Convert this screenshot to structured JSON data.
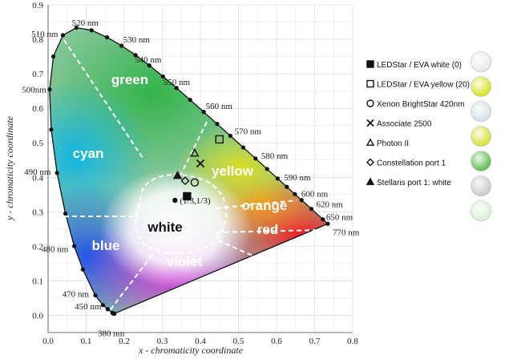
{
  "chart_data": {
    "type": "scatter",
    "xlabel": "x - chromaticity coordinate",
    "ylabel": "y - chromaticity coordinate",
    "xlim": [
      0.0,
      0.8
    ],
    "ylim": [
      -0.05,
      0.9
    ],
    "x_ticks": [
      "0.0",
      "0.1",
      "0.2",
      "0.3",
      "0.4",
      "0.5",
      "0.6",
      "0.7",
      "0.8"
    ],
    "y_ticks": [
      "0.0",
      "0.1",
      "0.2",
      "0.3",
      "0.4",
      "0.5",
      "0.6",
      "0.7",
      "0.8",
      "0.9"
    ],
    "grid": true,
    "spectral_locus": [
      {
        "label": "380 nm",
        "x": 0.1741,
        "y": 0.005
      },
      {
        "label": "",
        "x": 0.1738,
        "y": 0.0049
      },
      {
        "label": "",
        "x": 0.1733,
        "y": 0.0048
      },
      {
        "label": "",
        "x": 0.1726,
        "y": 0.0048
      },
      {
        "label": "",
        "x": 0.1714,
        "y": 0.0051
      },
      {
        "label": "",
        "x": 0.1689,
        "y": 0.0069
      },
      {
        "label": "450 nm",
        "x": 0.1566,
        "y": 0.0177
      },
      {
        "label": "",
        "x": 0.144,
        "y": 0.0297
      },
      {
        "label": "470 nm",
        "x": 0.1241,
        "y": 0.0578
      },
      {
        "label": "",
        "x": 0.0913,
        "y": 0.1327
      },
      {
        "label": "480 nm",
        "x": 0.0687,
        "y": 0.2007
      },
      {
        "label": "",
        "x": 0.0454,
        "y": 0.295
      },
      {
        "label": "490 nm",
        "x": 0.0235,
        "y": 0.4127
      },
      {
        "label": "",
        "x": 0.0082,
        "y": 0.5384
      },
      {
        "label": "500nm",
        "x": 0.0039,
        "y": 0.6548
      },
      {
        "label": "",
        "x": 0.0139,
        "y": 0.7502
      },
      {
        "label": "510 nm",
        "x": 0.0389,
        "y": 0.812
      },
      {
        "label": "",
        "x": 0.0743,
        "y": 0.8338
      },
      {
        "label": "520 nm",
        "x": 0.1142,
        "y": 0.8262
      },
      {
        "label": "",
        "x": 0.1547,
        "y": 0.8059
      },
      {
        "label": "530 nm",
        "x": 0.1929,
        "y": 0.7816
      },
      {
        "label": "",
        "x": 0.2296,
        "y": 0.7543
      },
      {
        "label": "540 nm",
        "x": 0.2658,
        "y": 0.7243
      },
      {
        "label": "",
        "x": 0.3016,
        "y": 0.6923
      },
      {
        "label": "550 nm",
        "x": 0.3373,
        "y": 0.6589
      },
      {
        "label": "",
        "x": 0.3731,
        "y": 0.6245
      },
      {
        "label": "560 nm",
        "x": 0.4087,
        "y": 0.5896
      },
      {
        "label": "",
        "x": 0.4441,
        "y": 0.5547
      },
      {
        "label": "570 nm",
        "x": 0.4788,
        "y": 0.5202
      },
      {
        "label": "",
        "x": 0.5125,
        "y": 0.4866
      },
      {
        "label": "580 nm",
        "x": 0.5448,
        "y": 0.4544
      },
      {
        "label": "",
        "x": 0.5752,
        "y": 0.4242
      },
      {
        "label": "590 nm",
        "x": 0.6029,
        "y": 0.3965
      },
      {
        "label": "",
        "x": 0.627,
        "y": 0.3725
      },
      {
        "label": "600 nm",
        "x": 0.6482,
        "y": 0.3514
      },
      {
        "label": "",
        "x": 0.6658,
        "y": 0.334
      },
      {
        "label": "620 nm",
        "x": 0.6915,
        "y": 0.3083
      },
      {
        "label": "650 nm",
        "x": 0.7219,
        "y": 0.2781
      },
      {
        "label": "770 nm",
        "x": 0.7347,
        "y": 0.2653
      }
    ],
    "regions": [
      "green",
      "cyan",
      "yellow",
      "orange",
      "white",
      "red",
      "blue",
      "violet"
    ],
    "white_point": {
      "label": "(1/3,1/3)",
      "x": 0.3333,
      "y": 0.3333
    },
    "series": [
      {
        "name": "LEDStar / EVA white (0)",
        "marker": "filled-square",
        "x": 0.365,
        "y": 0.345
      },
      {
        "name": "LEDStar / EVA yellow (20)",
        "marker": "open-square",
        "x": 0.45,
        "y": 0.51
      },
      {
        "name": "Xenon BrightStar 420nm",
        "marker": "open-circle",
        "x": 0.385,
        "y": 0.385
      },
      {
        "name": "Associate 2500",
        "marker": "x",
        "x": 0.4,
        "y": 0.44
      },
      {
        "name": "Photon II",
        "marker": "open-triangle",
        "x": 0.385,
        "y": 0.47
      },
      {
        "name": "Constellation port 1",
        "marker": "open-diamond",
        "x": 0.36,
        "y": 0.39
      },
      {
        "name": "Stellaris port 1: white",
        "marker": "filled-triangle",
        "x": 0.34,
        "y": 0.405
      }
    ],
    "swatch_colors": [
      "#e9ebe4",
      "#d8e21c",
      "#cfe4e6",
      "#d6e032",
      "#5fb84a",
      "#c7cbc7",
      "#d9f2d6"
    ]
  }
}
